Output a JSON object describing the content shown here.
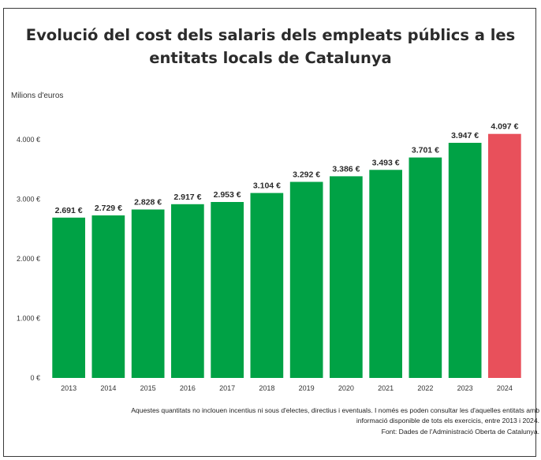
{
  "chart_data": {
    "type": "bar",
    "title": "Evolució del cost dels salaris dels empleats públics a les entitats locals de Catalunya",
    "ylabel": "Milions d'euros",
    "xlabel": "",
    "categories": [
      "2013",
      "2014",
      "2015",
      "2016",
      "2017",
      "2018",
      "2019",
      "2020",
      "2021",
      "2022",
      "2023",
      "2024"
    ],
    "values": [
      2691,
      2729,
      2828,
      2917,
      2953,
      3104,
      3292,
      3386,
      3493,
      3701,
      3947,
      4097
    ],
    "value_labels": [
      "2.691 €",
      "2.729 €",
      "2.828 €",
      "2.917 €",
      "2.953 €",
      "3.104 €",
      "3.292 €",
      "3.386 €",
      "3.493 €",
      "3.701 €",
      "3.947 €",
      "4.097 €"
    ],
    "ylim": [
      0,
      4000
    ],
    "yticks": [
      0,
      1000,
      2000,
      3000,
      4000
    ],
    "ytick_labels": [
      "0 €",
      "1.000 €",
      "2.000 €",
      "3.000 €",
      "4.000 €"
    ],
    "grid": false,
    "colors": {
      "default": "#00A245",
      "highlight": "#E8505B",
      "highlight_category": "2024"
    }
  },
  "note": {
    "line1": "Aquestes quantitats no inclouen incentius ni sous d'electes, directius i eventuals. I només es poden consultar les d'aquelles entitats amb",
    "line2": "informació disponible de tots els exercicis, entre 2013 i 2024."
  },
  "source": "Font: Dades de l'Administració Oberta de Catalunya."
}
